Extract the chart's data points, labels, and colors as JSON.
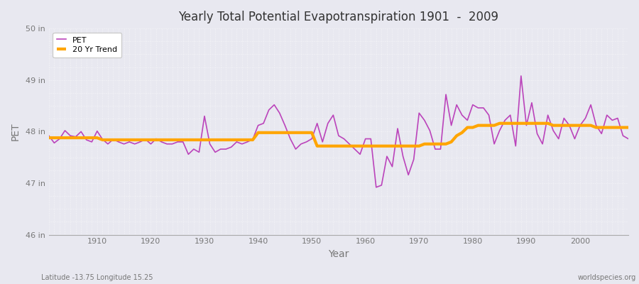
{
  "title": "Yearly Total Potential Evapotranspiration 1901  -  2009",
  "xlabel": "Year",
  "ylabel": "PET",
  "pet_color": "#bb44bb",
  "trend_color": "#FFA500",
  "bg_color": "#e8e8f0",
  "grid_color": "#ffffff",
  "ylim": [
    46,
    50
  ],
  "yticks": [
    46,
    47,
    48,
    49,
    50
  ],
  "ytick_labels": [
    "46 in",
    "47 in",
    "48 in",
    "49 in",
    "50 in"
  ],
  "xlim": [
    1901,
    2009
  ],
  "xticks": [
    1910,
    1920,
    1930,
    1940,
    1950,
    1960,
    1970,
    1980,
    1990,
    2000
  ],
  "legend_labels": [
    "PET",
    "20 Yr Trend"
  ],
  "subtitle_left": "Latitude -13.75 Longitude 15.25",
  "subtitle_right": "worldspecies.org",
  "years": [
    1901,
    1902,
    1903,
    1904,
    1905,
    1906,
    1907,
    1908,
    1909,
    1910,
    1911,
    1912,
    1913,
    1914,
    1915,
    1916,
    1917,
    1918,
    1919,
    1920,
    1921,
    1922,
    1923,
    1924,
    1925,
    1926,
    1927,
    1928,
    1929,
    1930,
    1931,
    1932,
    1933,
    1934,
    1935,
    1936,
    1937,
    1938,
    1939,
    1940,
    1941,
    1942,
    1943,
    1944,
    1945,
    1946,
    1947,
    1948,
    1949,
    1950,
    1951,
    1952,
    1953,
    1954,
    1955,
    1956,
    1957,
    1958,
    1959,
    1960,
    1961,
    1962,
    1963,
    1964,
    1965,
    1966,
    1967,
    1968,
    1969,
    1970,
    1971,
    1972,
    1973,
    1974,
    1975,
    1976,
    1977,
    1978,
    1979,
    1980,
    1981,
    1982,
    1983,
    1984,
    1985,
    1986,
    1987,
    1988,
    1989,
    1990,
    1991,
    1992,
    1993,
    1994,
    1995,
    1996,
    1997,
    1998,
    1999,
    2000,
    2001,
    2002,
    2003,
    2004,
    2005,
    2006,
    2007,
    2008,
    2009
  ],
  "pet": [
    47.92,
    47.78,
    47.86,
    48.02,
    47.92,
    47.9,
    48.0,
    47.84,
    47.8,
    48.01,
    47.85,
    47.76,
    47.85,
    47.8,
    47.76,
    47.8,
    47.76,
    47.8,
    47.85,
    47.76,
    47.86,
    47.8,
    47.76,
    47.76,
    47.8,
    47.8,
    47.56,
    47.66,
    47.6,
    48.3,
    47.76,
    47.6,
    47.66,
    47.66,
    47.7,
    47.8,
    47.76,
    47.8,
    47.85,
    48.12,
    48.16,
    48.42,
    48.52,
    48.36,
    48.12,
    47.86,
    47.66,
    47.76,
    47.8,
    47.86,
    48.16,
    47.8,
    48.16,
    48.32,
    47.92,
    47.86,
    47.76,
    47.66,
    47.56,
    47.86,
    47.86,
    46.92,
    46.96,
    47.52,
    47.32,
    48.06,
    47.52,
    47.16,
    47.46,
    48.36,
    48.22,
    48.02,
    47.66,
    47.66,
    48.72,
    48.12,
    48.52,
    48.32,
    48.22,
    48.52,
    48.46,
    48.46,
    48.32,
    47.76,
    48.02,
    48.22,
    48.32,
    47.72,
    49.08,
    48.12,
    48.56,
    47.96,
    47.76,
    48.32,
    48.02,
    47.86,
    48.26,
    48.12,
    47.86,
    48.12,
    48.26,
    48.52,
    48.12,
    47.96,
    48.32,
    48.22,
    48.26,
    47.92,
    47.86
  ],
  "trend": [
    47.88,
    47.88,
    47.88,
    47.88,
    47.88,
    47.88,
    47.88,
    47.88,
    47.88,
    47.88,
    47.84,
    47.84,
    47.84,
    47.84,
    47.84,
    47.84,
    47.84,
    47.84,
    47.84,
    47.84,
    47.84,
    47.84,
    47.84,
    47.84,
    47.84,
    47.84,
    47.84,
    47.84,
    47.84,
    47.84,
    47.84,
    47.84,
    47.84,
    47.84,
    47.84,
    47.84,
    47.84,
    47.84,
    47.84,
    47.98,
    47.98,
    47.98,
    47.98,
    47.98,
    47.98,
    47.98,
    47.98,
    47.98,
    47.98,
    47.98,
    47.72,
    47.72,
    47.72,
    47.72,
    47.72,
    47.72,
    47.72,
    47.72,
    47.72,
    47.72,
    47.72,
    47.72,
    47.72,
    47.72,
    47.72,
    47.72,
    47.72,
    47.72,
    47.72,
    47.72,
    47.76,
    47.76,
    47.76,
    47.76,
    47.76,
    47.8,
    47.92,
    47.98,
    48.08,
    48.08,
    48.12,
    48.12,
    48.12,
    48.12,
    48.16,
    48.16,
    48.16,
    48.16,
    48.16,
    48.16,
    48.16,
    48.16,
    48.16,
    48.16,
    48.12,
    48.12,
    48.12,
    48.12,
    48.12,
    48.12,
    48.12,
    48.12,
    48.08,
    48.08,
    48.08,
    48.08,
    48.08,
    48.08,
    48.08
  ]
}
